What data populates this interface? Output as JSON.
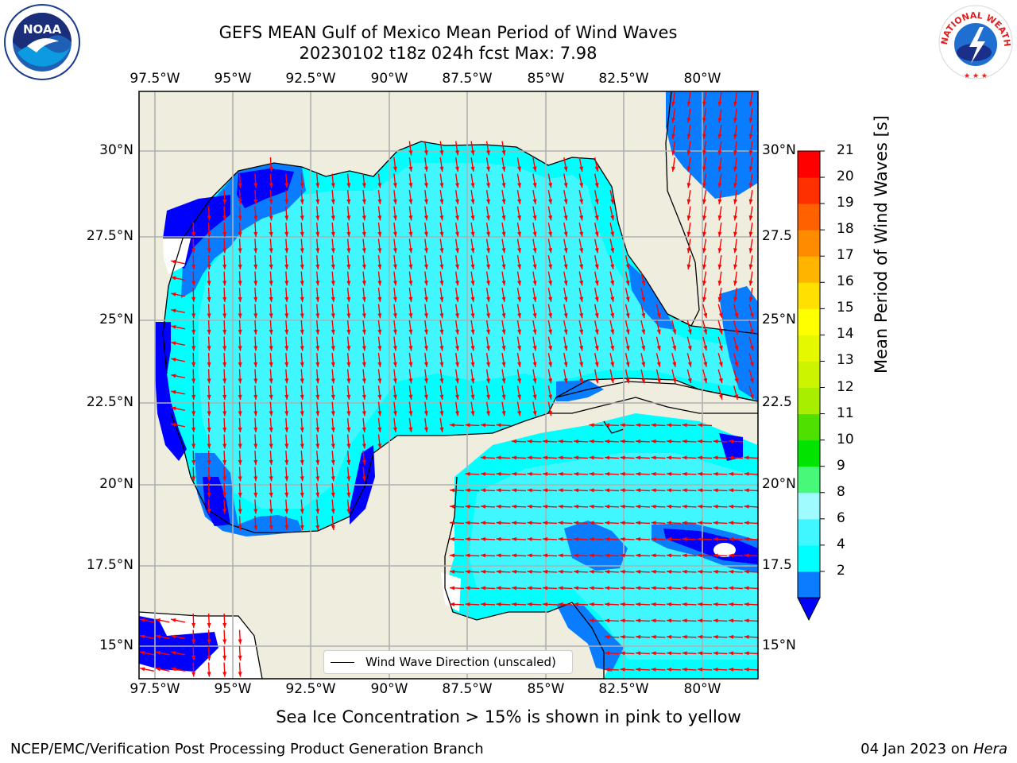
{
  "title": {
    "line1": "GEFS MEAN Gulf of Mexico Mean Period of Wind Waves",
    "line2": "20230102 t18z 024h fcst   Max: 7.98"
  },
  "logos": {
    "left": {
      "text": "NOAA",
      "icon": "noaa-logo"
    },
    "right": {
      "text": "NATIONAL WEATHER SERVICE",
      "icon": "nws-logo"
    }
  },
  "map": {
    "lon_ticks": [
      "97.5°W",
      "95°W",
      "92.5°W",
      "90°W",
      "87.5°W",
      "85°W",
      "82.5°W",
      "80°W"
    ],
    "lat_ticks_left": [
      "30°N",
      "27.5°N",
      "25°N",
      "22.5°N",
      "20°N",
      "17.5°N",
      "15°N"
    ],
    "lat_ticks_right": [
      "30°N",
      "27.5",
      "25°N",
      "22.5",
      "20°N",
      "17.5",
      "15°N"
    ],
    "legend_label": "Wind Wave Direction (unscaled)",
    "colors": {
      "land": "#efedde",
      "no_data": "#ffffff",
      "arrow": "#ff0000",
      "grid": "#b0b0b0"
    }
  },
  "colorbar": {
    "label": "Mean Period of Wind Waves [s]",
    "ticks": [
      "21",
      "20",
      "19",
      "18",
      "17",
      "16",
      "15",
      "14",
      "13",
      "12",
      "11",
      "10",
      "9",
      "8",
      "6",
      "4",
      "2"
    ],
    "levels": [
      {
        "value": "2-4",
        "color": "#0a7cff"
      },
      {
        "value": "4-6",
        "color": "#00ffff"
      },
      {
        "value": "6-8",
        "color": "#40f7ff"
      },
      {
        "value": "8-9",
        "color": "#a0fbff"
      },
      {
        "value": "9-10",
        "color": "#48f878"
      },
      {
        "value": "10-11",
        "color": "#00e400"
      },
      {
        "value": "11-12",
        "color": "#50e000"
      },
      {
        "value": "12-13",
        "color": "#a8ee00"
      },
      {
        "value": "13-14",
        "color": "#ccf400"
      },
      {
        "value": "14-15",
        "color": "#e6f800"
      },
      {
        "value": "15-16",
        "color": "#ffff00"
      },
      {
        "value": "16-17",
        "color": "#ffe000"
      },
      {
        "value": "17-18",
        "color": "#ffb400"
      },
      {
        "value": "18-19",
        "color": "#ff8c00"
      },
      {
        "value": "19-20",
        "color": "#ff6000"
      },
      {
        "value": "20-21",
        "color": "#ff3000"
      },
      {
        "value": ">21",
        "color": "#ff0000"
      }
    ],
    "under_color": "#0000ff"
  },
  "caption": "Sea Ice Concentration > 15% is shown in pink to yellow",
  "footer": {
    "left": "NCEP/EMC/Verification Post Processing Product Generation Branch",
    "right_prefix": "04 Jan 2023 on ",
    "right_host": "Hera"
  }
}
